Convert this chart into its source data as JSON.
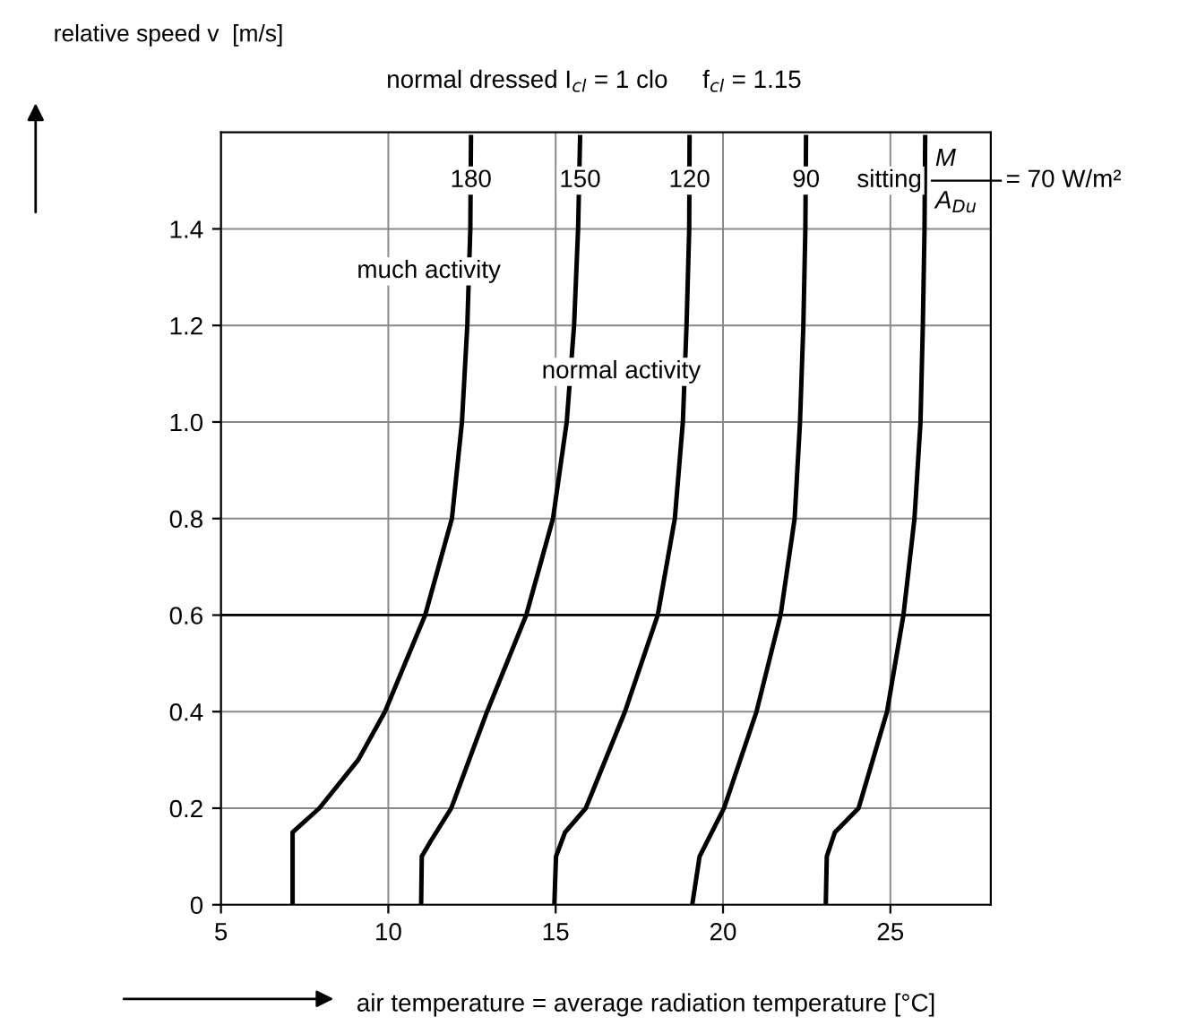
{
  "chart_data": {
    "type": "line",
    "title": "normal dressed I$_{cl}$ = 1 clo     f$_{cl}$ = 1.15",
    "xlabel": "air temperature = average radiation temperature [°C]",
    "ylabel": "relative speed v  [m/s]",
    "series": [
      {
        "name": "180",
        "color": "#000000",
        "x": [
          7.14,
          7.14,
          7.94,
          9.1,
          9.9,
          11.1,
          11.9,
          12.2,
          12.36,
          12.45,
          12.47
        ],
        "values": [
          0,
          0.15,
          0.2,
          0.3,
          0.4,
          0.6,
          0.8,
          1.0,
          1.2,
          1.4,
          1.59
        ]
      },
      {
        "name": "150",
        "color": "#000000",
        "x": [
          10.98,
          11.0,
          11.25,
          11.88,
          12.95,
          14.12,
          14.92,
          15.33,
          15.55,
          15.67,
          15.73
        ],
        "values": [
          0,
          0.1,
          0.13,
          0.2,
          0.4,
          0.6,
          0.8,
          1.0,
          1.2,
          1.4,
          1.59
        ]
      },
      {
        "name": "120",
        "color": "#000000",
        "x": [
          14.96,
          15.01,
          15.28,
          15.9,
          17.07,
          18.05,
          18.56,
          18.8,
          18.91,
          18.99,
          19.0
        ],
        "values": [
          0,
          0.1,
          0.15,
          0.2,
          0.4,
          0.6,
          0.8,
          1.0,
          1.2,
          1.4,
          1.59
        ]
      },
      {
        "name": "90",
        "color": "#000000",
        "x": [
          19.08,
          19.3,
          20.03,
          21.0,
          21.72,
          22.14,
          22.3,
          22.4,
          22.46,
          22.48
        ],
        "values": [
          0,
          0.1,
          0.2,
          0.4,
          0.6,
          0.8,
          1.0,
          1.2,
          1.4,
          1.59
        ]
      },
      {
        "name": "sitting",
        "color": "#000000",
        "x": [
          23.07,
          23.1,
          23.34,
          24.05,
          24.9,
          25.39,
          25.72,
          25.9,
          25.97,
          26.02,
          26.04
        ],
        "values": [
          0,
          0.1,
          0.15,
          0.2,
          0.4,
          0.6,
          0.8,
          1.0,
          1.2,
          1.4,
          1.59
        ]
      }
    ],
    "xlim": [
      5,
      28
    ],
    "xticks": [
      5,
      10,
      15,
      20,
      25
    ],
    "ylim": [
      0,
      1.6
    ],
    "yticks": [
      0,
      0.2,
      0.4,
      0.6,
      0.8,
      {
        "value": 1.0,
        "label": "1.0"
      },
      1.2,
      1.4
    ],
    "grid": true,
    "line_style": "solid",
    "marker": "none",
    "ref_lines": [
      {
        "axis": "y",
        "value": 0.6,
        "color": "#000000"
      }
    ],
    "annotations": [
      "much activity",
      "normal activity",
      "M",
      "A$_{Du}$",
      "= 70 W/m²"
    ]
  }
}
